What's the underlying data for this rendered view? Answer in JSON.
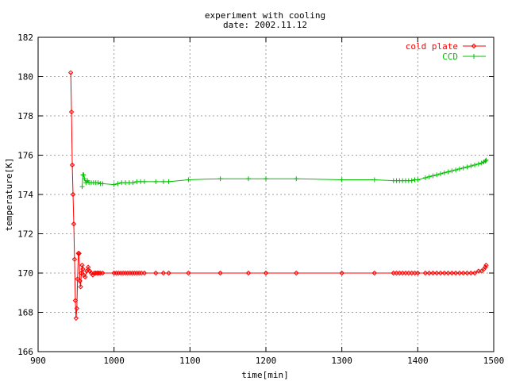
{
  "chart_data": {
    "type": "line",
    "title": "experiment with cooling",
    "subtitle": "date: 2002.11.12",
    "xlabel": "time[min]",
    "ylabel": "temperature[K]",
    "xlim": [
      900,
      1500
    ],
    "ylim": [
      166,
      182
    ],
    "xticks": [
      900,
      1000,
      1100,
      1200,
      1300,
      1400,
      1500
    ],
    "yticks": [
      166,
      168,
      170,
      172,
      174,
      176,
      178,
      180,
      182
    ],
    "grid": true,
    "legend_position": "top-right",
    "series": [
      {
        "name": "cold plate",
        "color": "#ff0000",
        "marker": "diamond",
        "points": [
          [
            943,
            180.2
          ],
          [
            944,
            178.2
          ],
          [
            945,
            175.5
          ],
          [
            946,
            174.0
          ],
          [
            947,
            172.5
          ],
          [
            948,
            170.7
          ],
          [
            949,
            168.6
          ],
          [
            950,
            167.7
          ],
          [
            951,
            168.2
          ],
          [
            952,
            169.7
          ],
          [
            953,
            171.0
          ],
          [
            954,
            171.0
          ],
          [
            955,
            169.6
          ],
          [
            956,
            169.3
          ],
          [
            957,
            170.0
          ],
          [
            958,
            170.4
          ],
          [
            959,
            170.2
          ],
          [
            960,
            169.9
          ],
          [
            962,
            169.8
          ],
          [
            964,
            170.1
          ],
          [
            966,
            170.3
          ],
          [
            968,
            170.1
          ],
          [
            970,
            170.0
          ],
          [
            972,
            169.9
          ],
          [
            974,
            170.0
          ],
          [
            976,
            170.0
          ],
          [
            978,
            170.0
          ],
          [
            980,
            170.0
          ],
          [
            982,
            170.0
          ],
          [
            985,
            170.0
          ],
          [
            1000,
            170.0
          ],
          [
            1003,
            170.0
          ],
          [
            1006,
            170.0
          ],
          [
            1009,
            170.0
          ],
          [
            1012,
            170.0
          ],
          [
            1015,
            170.0
          ],
          [
            1018,
            170.0
          ],
          [
            1021,
            170.0
          ],
          [
            1024,
            170.0
          ],
          [
            1027,
            170.0
          ],
          [
            1030,
            170.0
          ],
          [
            1033,
            170.0
          ],
          [
            1036,
            170.0
          ],
          [
            1040,
            170.0
          ],
          [
            1055,
            170.0
          ],
          [
            1065,
            170.0
          ],
          [
            1072,
            170.0
          ],
          [
            1098,
            170.0
          ],
          [
            1140,
            170.0
          ],
          [
            1177,
            170.0
          ],
          [
            1200,
            170.0
          ],
          [
            1240,
            170.0
          ],
          [
            1300,
            170.0
          ],
          [
            1343,
            170.0
          ],
          [
            1368,
            170.0
          ],
          [
            1372,
            170.0
          ],
          [
            1376,
            170.0
          ],
          [
            1380,
            170.0
          ],
          [
            1384,
            170.0
          ],
          [
            1388,
            170.0
          ],
          [
            1392,
            170.0
          ],
          [
            1396,
            170.0
          ],
          [
            1400,
            170.0
          ],
          [
            1410,
            170.0
          ],
          [
            1415,
            170.0
          ],
          [
            1420,
            170.0
          ],
          [
            1425,
            170.0
          ],
          [
            1430,
            170.0
          ],
          [
            1435,
            170.0
          ],
          [
            1440,
            170.0
          ],
          [
            1445,
            170.0
          ],
          [
            1450,
            170.0
          ],
          [
            1455,
            170.0
          ],
          [
            1460,
            170.0
          ],
          [
            1465,
            170.0
          ],
          [
            1470,
            170.0
          ],
          [
            1475,
            170.0
          ],
          [
            1480,
            170.1
          ],
          [
            1484,
            170.1
          ],
          [
            1487,
            170.2
          ],
          [
            1489,
            170.3
          ],
          [
            1490,
            170.4
          ]
        ]
      },
      {
        "name": "CCD",
        "color": "#00c000",
        "marker": "plus",
        "points": [
          [
            958,
            174.4
          ],
          [
            959,
            175.0
          ],
          [
            960,
            175.0
          ],
          [
            961,
            174.8
          ],
          [
            963,
            174.6
          ],
          [
            965,
            174.7
          ],
          [
            967,
            174.6
          ],
          [
            970,
            174.6
          ],
          [
            973,
            174.6
          ],
          [
            976,
            174.6
          ],
          [
            979,
            174.6
          ],
          [
            982,
            174.55
          ],
          [
            985,
            174.55
          ],
          [
            1000,
            174.5
          ],
          [
            1005,
            174.55
          ],
          [
            1010,
            174.6
          ],
          [
            1015,
            174.6
          ],
          [
            1020,
            174.6
          ],
          [
            1025,
            174.6
          ],
          [
            1030,
            174.65
          ],
          [
            1035,
            174.65
          ],
          [
            1040,
            174.65
          ],
          [
            1055,
            174.65
          ],
          [
            1065,
            174.65
          ],
          [
            1072,
            174.65
          ],
          [
            1098,
            174.75
          ],
          [
            1140,
            174.8
          ],
          [
            1177,
            174.8
          ],
          [
            1200,
            174.8
          ],
          [
            1240,
            174.8
          ],
          [
            1300,
            174.75
          ],
          [
            1343,
            174.75
          ],
          [
            1368,
            174.7
          ],
          [
            1372,
            174.7
          ],
          [
            1376,
            174.7
          ],
          [
            1380,
            174.7
          ],
          [
            1384,
            174.7
          ],
          [
            1388,
            174.7
          ],
          [
            1392,
            174.7
          ],
          [
            1396,
            174.75
          ],
          [
            1400,
            174.75
          ],
          [
            1410,
            174.85
          ],
          [
            1415,
            174.9
          ],
          [
            1420,
            174.95
          ],
          [
            1425,
            175.0
          ],
          [
            1430,
            175.05
          ],
          [
            1435,
            175.1
          ],
          [
            1440,
            175.15
          ],
          [
            1445,
            175.2
          ],
          [
            1450,
            175.25
          ],
          [
            1455,
            175.3
          ],
          [
            1460,
            175.35
          ],
          [
            1465,
            175.4
          ],
          [
            1470,
            175.45
          ],
          [
            1475,
            175.5
          ],
          [
            1480,
            175.55
          ],
          [
            1484,
            175.6
          ],
          [
            1487,
            175.65
          ],
          [
            1489,
            175.7
          ],
          [
            1490,
            175.75
          ]
        ]
      }
    ]
  }
}
